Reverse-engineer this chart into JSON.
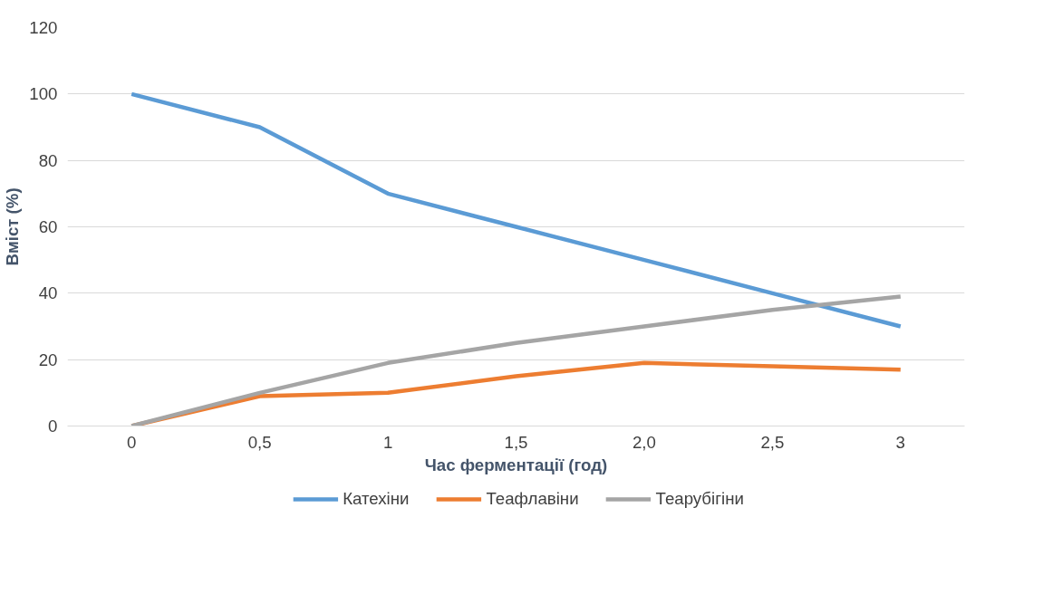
{
  "chart_data": {
    "type": "line",
    "xlabel": "Час ферментації (год)",
    "ylabel": "Вміст (%)",
    "categories": [
      "0",
      "0,5",
      "1",
      "1,5",
      "2,0",
      "2,5",
      "3"
    ],
    "series": [
      {
        "name": "Катехіни",
        "color": "#5b9bd5",
        "values": [
          100,
          90,
          70,
          60,
          50,
          40,
          30
        ]
      },
      {
        "name": "Теафлавіни",
        "color": "#ed7d31",
        "values": [
          0,
          9,
          10,
          15,
          19,
          18,
          17
        ]
      },
      {
        "name": "Теарубігіни",
        "color": "#a5a5a5",
        "values": [
          0,
          10,
          19,
          25,
          30,
          35,
          39
        ]
      }
    ],
    "ylim": [
      0,
      120
    ],
    "yticks": [
      0,
      20,
      40,
      60,
      80,
      100,
      120
    ],
    "grid": "y",
    "legend": "bottom",
    "marker": "none",
    "line_style": "solid"
  }
}
